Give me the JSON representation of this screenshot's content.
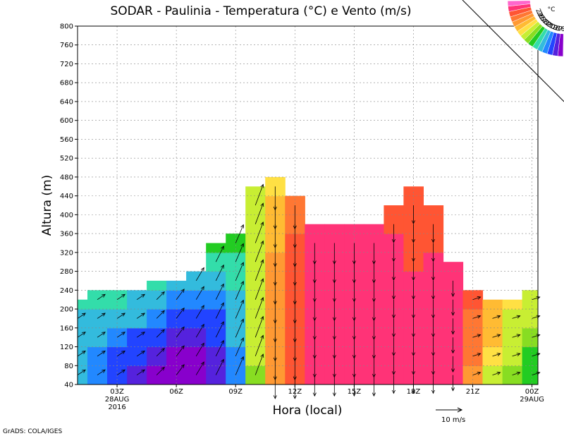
{
  "chart_data": {
    "type": "heatmap",
    "title": "SODAR - Paulinia - Temperatura (°C) e Vento (m/s)",
    "xlabel": "Hora (local)",
    "ylabel": "Altura (m)",
    "ylim": [
      40,
      800
    ],
    "yticks": [
      "800",
      "760",
      "720",
      "680",
      "640",
      "600",
      "560",
      "520",
      "480",
      "440",
      "400",
      "360",
      "320",
      "280",
      "240",
      "200",
      "160",
      "120",
      "80",
      "40"
    ],
    "xticks": [
      {
        "hour": 3,
        "label": "03Z",
        "sub1": "28AUG",
        "sub2": "2016"
      },
      {
        "hour": 6,
        "label": "06Z",
        "sub1": "",
        "sub2": ""
      },
      {
        "hour": 9,
        "label": "09Z",
        "sub1": "",
        "sub2": ""
      },
      {
        "hour": 12,
        "label": "12Z",
        "sub1": "",
        "sub2": ""
      },
      {
        "hour": 15,
        "label": "15Z",
        "sub1": "",
        "sub2": ""
      },
      {
        "hour": 18,
        "label": "18Z",
        "sub1": "",
        "sub2": ""
      },
      {
        "hour": 21,
        "label": "21Z",
        "sub1": "",
        "sub2": ""
      },
      {
        "hour": 24,
        "label": "00Z",
        "sub1": "29AUG",
        "sub2": ""
      }
    ],
    "grid": true,
    "colorbar": {
      "unit": "°C",
      "levels": [
        "27",
        "26",
        "25",
        "24",
        "23",
        "22",
        "21",
        "20",
        "19",
        "18",
        "17",
        "16"
      ],
      "colors": [
        "#ff66cc",
        "#ff3377",
        "#ff5533",
        "#ff7733",
        "#ff9933",
        "#ffbb33",
        "#ffe044",
        "#c8ee33",
        "#88dd22",
        "#22cc22",
        "#33ddaa",
        "#33bbdd",
        "#2288ff",
        "#2244ff",
        "#5522dd",
        "#8800cc"
      ]
    },
    "data_top_m": [
      220,
      240,
      240,
      240,
      260,
      260,
      280,
      340,
      360,
      460,
      480,
      440,
      380,
      380,
      380,
      380,
      420,
      460,
      420,
      300,
      240,
      220,
      220,
      240
    ],
    "temperature_c": [
      [
        18.8,
        18.2,
        17.4,
        16.7,
        16.2,
        16.0,
        16.0,
        16.6,
        18.2,
        21.5,
        24.5,
        26.0,
        26.4,
        26.6,
        26.8,
        26.8,
        27.0,
        27.0,
        26.8,
        26.5,
        24.5,
        22.5,
        21.5,
        21.0
      ],
      [
        19.0,
        18.6,
        18.0,
        17.4,
        16.8,
        16.3,
        16.4,
        16.9,
        18.5,
        21.8,
        24.6,
        26.0,
        26.5,
        26.7,
        26.9,
        26.9,
        27.0,
        27.0,
        26.9,
        26.6,
        25.0,
        23.0,
        21.8,
        21.0
      ],
      [
        19.2,
        19.0,
        18.6,
        18.0,
        17.5,
        17.0,
        16.9,
        17.4,
        18.8,
        22.0,
        24.7,
        26.0,
        26.6,
        26.8,
        27.0,
        27.0,
        27.0,
        27.0,
        27.0,
        26.7,
        25.3,
        23.4,
        22.0,
        21.5
      ],
      [
        19.5,
        19.5,
        19.2,
        18.8,
        18.2,
        17.7,
        17.5,
        17.9,
        19.2,
        22.2,
        24.7,
        26.1,
        26.7,
        26.9,
        27.0,
        27.0,
        27.0,
        27.0,
        27.0,
        26.8,
        25.5,
        23.8,
        22.5,
        22.0
      ],
      [
        19.8,
        19.8,
        19.6,
        19.3,
        18.9,
        18.5,
        18.3,
        18.5,
        19.5,
        22.4,
        24.6,
        26.1,
        26.7,
        26.9,
        27.0,
        27.0,
        27.0,
        27.0,
        27.0,
        26.8,
        25.6,
        24.0,
        23.0,
        22.5
      ],
      [
        20.3,
        20.4,
        20.2,
        20.0,
        19.6,
        19.3,
        19.0,
        19.2,
        19.9,
        22.5,
        24.5,
        26.0,
        26.7,
        26.9,
        27.0,
        27.0,
        27.0,
        27.0,
        27.0,
        26.8,
        25.7,
        24.5,
        23.8,
        23.5
      ],
      [
        21.0,
        21.2,
        21.0,
        20.6,
        20.3,
        20.0,
        19.7,
        19.8,
        20.2,
        22.5,
        24.3,
        25.8,
        26.6,
        26.9,
        27.0,
        27.0,
        26.6,
        26.2,
        26.4,
        26.8,
        26.0,
        25.0,
        24.5,
        24.5
      ],
      [
        21.0,
        21.0,
        21.0,
        21.0,
        20.8,
        20.6,
        20.3,
        20.3,
        20.6,
        22.5,
        24.0,
        25.6,
        26.5,
        26.8,
        26.9,
        26.7,
        26.3,
        26.0,
        26.2,
        26.0,
        26.0,
        26.0,
        26.0,
        26.0
      ],
      [
        21.0,
        21.0,
        21.0,
        21.0,
        21.0,
        21.0,
        20.7,
        20.7,
        20.8,
        22.3,
        23.6,
        25.4,
        26.3,
        26.6,
        26.6,
        26.3,
        26.0,
        26.0,
        26.0,
        26.0,
        26.0,
        26.0,
        26.0,
        26.0
      ],
      [
        21.0,
        21.0,
        21.0,
        21.0,
        21.0,
        21.0,
        21.0,
        21.0,
        21.0,
        22.0,
        23.3,
        25.2,
        26.0,
        26.2,
        26.2,
        26.0,
        26.0,
        26.0,
        26.0,
        26.0,
        26.0,
        26.0,
        26.0,
        26.0
      ],
      [
        21.0,
        21.0,
        21.0,
        21.0,
        21.0,
        21.0,
        21.0,
        21.0,
        21.0,
        21.8,
        23.0,
        25.0,
        26.0,
        26.0,
        26.0,
        26.0,
        26.0,
        26.0,
        26.0,
        26.0,
        26.0,
        26.0,
        26.0,
        26.0
      ],
      [
        21.0,
        21.0,
        21.0,
        21.0,
        21.0,
        21.0,
        21.0,
        21.0,
        21.0,
        21.6,
        22.8,
        24.8,
        26.0,
        26.0,
        26.0,
        26.0,
        26.0,
        26.0,
        26.0,
        26.0,
        26.0,
        26.0,
        26.0,
        26.0
      ]
    ],
    "wind_u_ms": [
      [
        3,
        3,
        3,
        3,
        3,
        3,
        3,
        3,
        3,
        3,
        0,
        0,
        0,
        0,
        0,
        0,
        0,
        0,
        0,
        0,
        3,
        3,
        3,
        3
      ],
      [
        3,
        3,
        3,
        3,
        3,
        3,
        3,
        3,
        3,
        3,
        0,
        0,
        0,
        0,
        0,
        0,
        0,
        0,
        0,
        0,
        3,
        3,
        3,
        3
      ],
      [
        3,
        3,
        3,
        3,
        3,
        3,
        3,
        3,
        3,
        3,
        0,
        0,
        0,
        0,
        0,
        0,
        0,
        0,
        0,
        0,
        3,
        3,
        3,
        3
      ],
      [
        3,
        3,
        3,
        3,
        3,
        3,
        3,
        3,
        3,
        3,
        0,
        0,
        0,
        0,
        0,
        0,
        0,
        0,
        0,
        0,
        3,
        3,
        3,
        3
      ],
      [
        3,
        3,
        3,
        3,
        3,
        3,
        3,
        3,
        3,
        3,
        0,
        0,
        0,
        0,
        0,
        0,
        0,
        0,
        0,
        0,
        3,
        3,
        3,
        3
      ],
      [
        3,
        3,
        3,
        3,
        3,
        3,
        3,
        3,
        3,
        3,
        0,
        0,
        0,
        0,
        0,
        0,
        0,
        0,
        0,
        0,
        3,
        3,
        3,
        3
      ],
      [
        3,
        3,
        3,
        3,
        3,
        3,
        3,
        3,
        3,
        3,
        0,
        0,
        0,
        0,
        0,
        0,
        0,
        0,
        0,
        0,
        3,
        3,
        3,
        3
      ],
      [
        3,
        3,
        3,
        3,
        3,
        3,
        3,
        3,
        3,
        3,
        0,
        0,
        0,
        0,
        0,
        0,
        0,
        0,
        0,
        0,
        3,
        3,
        3,
        3
      ],
      [
        3,
        3,
        3,
        3,
        3,
        3,
        3,
        3,
        3,
        3,
        0,
        0,
        0,
        0,
        0,
        0,
        0,
        0,
        0,
        0,
        3,
        3,
        3,
        3
      ],
      [
        3,
        3,
        3,
        3,
        3,
        3,
        3,
        3,
        3,
        3,
        0,
        0,
        0,
        0,
        0,
        0,
        0,
        0,
        0,
        0,
        3,
        3,
        3,
        3
      ],
      [
        3,
        3,
        3,
        3,
        3,
        3,
        3,
        3,
        3,
        3,
        0,
        0,
        0,
        0,
        0,
        0,
        0,
        0,
        0,
        0,
        3,
        3,
        3,
        3
      ],
      [
        3,
        3,
        3,
        3,
        3,
        3,
        3,
        3,
        3,
        3,
        0,
        0,
        0,
        0,
        0,
        0,
        0,
        0,
        0,
        0,
        3,
        3,
        3,
        3
      ]
    ],
    "wind_v_ms": [
      [
        2,
        2,
        2,
        2,
        3,
        4,
        5,
        6,
        7,
        8,
        -9,
        -9,
        -8,
        -8,
        -8,
        -8,
        -7,
        -7,
        -7,
        -6,
        1,
        1,
        1,
        1
      ],
      [
        2,
        2,
        2,
        2,
        3,
        4,
        5,
        6,
        7,
        8,
        -9,
        -9,
        -8,
        -8,
        -8,
        -8,
        -7,
        -7,
        -7,
        -6,
        1,
        1,
        1,
        1
      ],
      [
        2,
        2,
        2,
        2,
        3,
        4,
        5,
        6,
        7,
        8,
        -9,
        -9,
        -8,
        -8,
        -8,
        -8,
        -7,
        -7,
        -7,
        -6,
        1,
        1,
        1,
        1
      ],
      [
        2,
        2,
        2,
        2,
        3,
        4,
        5,
        6,
        7,
        8,
        -9,
        -9,
        -8,
        -8,
        -8,
        -8,
        -7,
        -7,
        -7,
        -6,
        1,
        1,
        1,
        1
      ],
      [
        2,
        2,
        2,
        2,
        3,
        4,
        5,
        6,
        7,
        8,
        -9,
        -9,
        -8,
        -8,
        -8,
        -8,
        -7,
        -7,
        -7,
        -6,
        1,
        1,
        1,
        1
      ],
      [
        2,
        2,
        2,
        2,
        3,
        4,
        5,
        6,
        7,
        8,
        -9,
        -9,
        -8,
        -8,
        -8,
        -8,
        -7,
        -7,
        -7,
        -6,
        1,
        1,
        1,
        1
      ],
      [
        2,
        2,
        2,
        2,
        3,
        4,
        5,
        6,
        7,
        8,
        -9,
        -9,
        -8,
        -8,
        -8,
        -8,
        -7,
        -7,
        -7,
        -6,
        1,
        1,
        1,
        1
      ],
      [
        2,
        2,
        2,
        2,
        3,
        4,
        5,
        6,
        7,
        8,
        -9,
        -9,
        -8,
        -8,
        -8,
        -8,
        -7,
        -7,
        -7,
        -6,
        1,
        1,
        1,
        1
      ],
      [
        2,
        2,
        2,
        2,
        3,
        4,
        5,
        6,
        7,
        8,
        -9,
        -9,
        -8,
        -8,
        -8,
        -8,
        -7,
        -7,
        -7,
        -6,
        1,
        1,
        1,
        1
      ],
      [
        2,
        2,
        2,
        2,
        3,
        4,
        5,
        6,
        7,
        8,
        -9,
        -9,
        -8,
        -8,
        -8,
        -8,
        -7,
        -7,
        -7,
        -6,
        1,
        1,
        1,
        1
      ],
      [
        2,
        2,
        2,
        2,
        3,
        4,
        5,
        6,
        7,
        8,
        -9,
        -9,
        -8,
        -8,
        -8,
        -8,
        -7,
        -7,
        -7,
        -6,
        1,
        1,
        1,
        1
      ],
      [
        2,
        2,
        2,
        2,
        3,
        4,
        5,
        6,
        7,
        8,
        -9,
        -9,
        -8,
        -8,
        -8,
        -8,
        -7,
        -7,
        -7,
        -6,
        1,
        1,
        1,
        1
      ]
    ],
    "reference_vector": {
      "speed_ms": 10,
      "label": "10 m/s"
    }
  },
  "footer": {
    "credit": "GrADS: COLA/IGES"
  }
}
